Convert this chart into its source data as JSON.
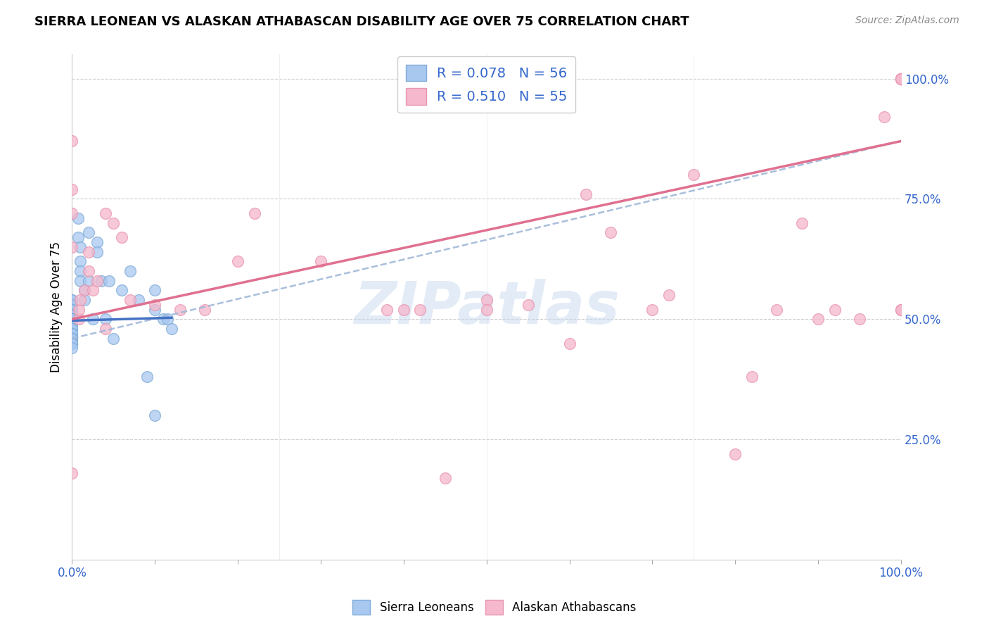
{
  "title": "SIERRA LEONEAN VS ALASKAN ATHABASCAN DISABILITY AGE OVER 75 CORRELATION CHART",
  "source": "Source: ZipAtlas.com",
  "ylabel": "Disability Age Over 75",
  "xlim": [
    0.0,
    1.0
  ],
  "ylim": [
    0.0,
    1.05
  ],
  "legend1_label": "R = 0.078   N = 56",
  "legend2_label": "R = 0.510   N = 55",
  "watermark": "ZIPatlas",
  "blue_scatter_x": [
    0.0,
    0.0,
    0.0,
    0.0,
    0.0,
    0.0,
    0.0,
    0.0,
    0.0,
    0.0,
    0.0,
    0.0,
    0.0,
    0.0,
    0.0,
    0.0,
    0.0,
    0.0,
    0.0,
    0.0,
    0.0,
    0.0,
    0.0,
    0.0,
    0.0,
    0.0,
    0.0,
    0.0,
    0.0,
    0.007,
    0.007,
    0.01,
    0.01,
    0.01,
    0.01,
    0.015,
    0.015,
    0.02,
    0.02,
    0.025,
    0.03,
    0.03,
    0.035,
    0.04,
    0.045,
    0.05,
    0.06,
    0.07,
    0.08,
    0.09,
    0.1,
    0.1,
    0.1,
    0.11,
    0.115,
    0.12
  ],
  "blue_scatter_y": [
    0.54,
    0.54,
    0.53,
    0.52,
    0.52,
    0.51,
    0.51,
    0.51,
    0.5,
    0.5,
    0.5,
    0.5,
    0.49,
    0.49,
    0.49,
    0.48,
    0.48,
    0.48,
    0.47,
    0.47,
    0.47,
    0.46,
    0.46,
    0.46,
    0.46,
    0.45,
    0.45,
    0.45,
    0.44,
    0.71,
    0.67,
    0.65,
    0.62,
    0.6,
    0.58,
    0.56,
    0.54,
    0.68,
    0.58,
    0.5,
    0.66,
    0.64,
    0.58,
    0.5,
    0.58,
    0.46,
    0.56,
    0.6,
    0.54,
    0.38,
    0.56,
    0.52,
    0.3,
    0.5,
    0.5,
    0.48
  ],
  "pink_scatter_x": [
    0.0,
    0.0,
    0.0,
    0.0,
    0.0,
    0.008,
    0.008,
    0.01,
    0.015,
    0.02,
    0.02,
    0.025,
    0.03,
    0.04,
    0.04,
    0.05,
    0.06,
    0.07,
    0.1,
    0.13,
    0.16,
    0.2,
    0.22,
    0.3,
    0.38,
    0.4,
    0.42,
    0.45,
    0.5,
    0.5,
    0.55,
    0.6,
    0.62,
    0.65,
    0.7,
    0.72,
    0.75,
    0.8,
    0.82,
    0.85,
    0.88,
    0.9,
    0.92,
    0.95,
    0.98,
    1.0,
    1.0,
    1.0,
    1.0,
    1.0,
    1.0,
    1.0,
    1.0,
    1.0,
    1.0
  ],
  "pink_scatter_y": [
    0.87,
    0.77,
    0.72,
    0.65,
    0.18,
    0.5,
    0.52,
    0.54,
    0.56,
    0.6,
    0.64,
    0.56,
    0.58,
    0.48,
    0.72,
    0.7,
    0.67,
    0.54,
    0.53,
    0.52,
    0.52,
    0.62,
    0.72,
    0.62,
    0.52,
    0.52,
    0.52,
    0.17,
    0.54,
    0.52,
    0.53,
    0.45,
    0.76,
    0.68,
    0.52,
    0.55,
    0.8,
    0.22,
    0.38,
    0.52,
    0.7,
    0.5,
    0.52,
    0.5,
    0.92,
    0.52,
    0.52,
    0.52,
    1.0,
    1.0,
    1.0,
    1.0,
    1.0,
    1.0,
    1.0
  ],
  "blue_line_x": [
    0.0,
    0.12
  ],
  "blue_line_y": [
    0.497,
    0.503
  ],
  "pink_line_x": [
    0.0,
    1.0
  ],
  "pink_line_y": [
    0.5,
    0.87
  ],
  "dashed_line_x": [
    0.0,
    1.0
  ],
  "dashed_line_y": [
    0.46,
    0.87
  ],
  "ytick_positions": [
    0.25,
    0.5,
    0.75,
    1.0
  ],
  "ytick_labels": [
    "25.0%",
    "50.0%",
    "75.0%",
    "100.0%"
  ],
  "xtick_positions": [
    0.0,
    1.0
  ],
  "xtick_labels": [
    "0.0%",
    "100.0%"
  ]
}
